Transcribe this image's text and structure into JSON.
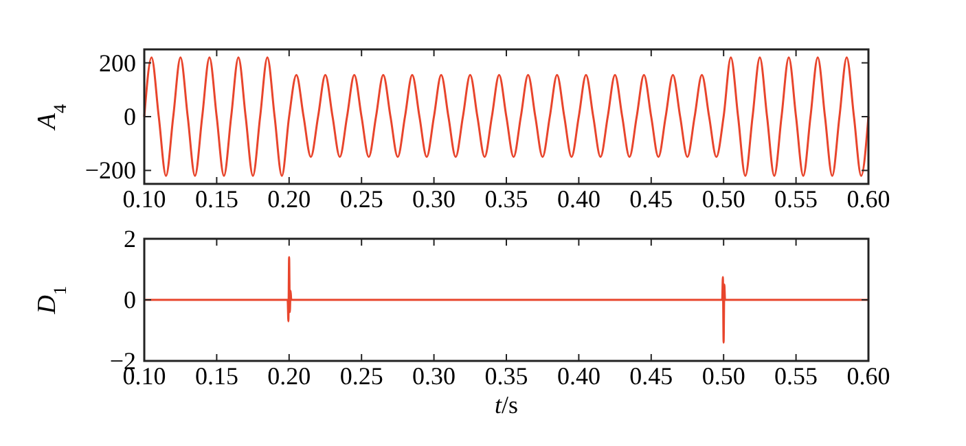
{
  "chart_data": [
    {
      "type": "line",
      "ylabel": "A$_{4}$",
      "xlim": [
        0.1,
        0.6
      ],
      "ylim": [
        -250,
        250
      ],
      "xticks": [
        {
          "value": 0.1,
          "label": "0.10"
        },
        {
          "value": 0.15,
          "label": "0.15"
        },
        {
          "value": 0.2,
          "label": "0.20"
        },
        {
          "value": 0.25,
          "label": "0.25"
        },
        {
          "value": 0.3,
          "label": "0.30"
        },
        {
          "value": 0.35,
          "label": "0.35"
        },
        {
          "value": 0.4,
          "label": "0.40"
        },
        {
          "value": 0.45,
          "label": "0.45"
        },
        {
          "value": 0.5,
          "label": "0.50"
        },
        {
          "value": 0.55,
          "label": "0.55"
        },
        {
          "value": 0.6,
          "label": "0.60"
        }
      ],
      "yticks": [
        {
          "value": -200,
          "label": "−200"
        },
        0,
        200
      ],
      "grid": false,
      "series": [
        {
          "color": "#e8452c",
          "x": [
            0.1,
            0.105,
            0.11,
            0.115,
            0.12,
            0.125,
            0.13,
            0.135,
            0.14,
            0.145,
            0.15,
            0.155,
            0.16,
            0.165,
            0.17,
            0.175,
            0.18,
            0.185,
            0.19,
            0.195,
            0.2,
            0.205,
            0.21,
            0.215,
            0.22,
            0.225,
            0.23,
            0.235,
            0.24,
            0.245,
            0.25,
            0.255,
            0.26,
            0.265,
            0.27,
            0.275,
            0.28,
            0.285,
            0.29,
            0.295,
            0.3,
            0.305,
            0.31,
            0.315,
            0.32,
            0.325,
            0.33,
            0.335,
            0.34,
            0.345,
            0.35,
            0.355,
            0.36,
            0.365,
            0.37,
            0.375,
            0.38,
            0.385,
            0.39,
            0.395,
            0.4,
            0.405,
            0.41,
            0.415,
            0.42,
            0.425,
            0.43,
            0.435,
            0.44,
            0.445,
            0.45,
            0.455,
            0.46,
            0.465,
            0.47,
            0.475,
            0.48,
            0.485,
            0.49,
            0.495,
            0.5,
            0.505,
            0.51,
            0.515,
            0.52,
            0.525,
            0.53,
            0.535,
            0.54,
            0.545,
            0.55,
            0.555,
            0.56,
            0.565,
            0.57,
            0.575,
            0.58,
            0.585,
            0.59,
            0.595,
            0.6
          ],
          "values": [
            0,
            220,
            0,
            -220,
            0,
            220,
            0,
            -220,
            0,
            220,
            0,
            -220,
            0,
            220,
            0,
            -220,
            0,
            220,
            0,
            -220,
            0,
            155,
            0,
            -150,
            0,
            155,
            0,
            -150,
            0,
            155,
            0,
            -150,
            0,
            155,
            0,
            -150,
            0,
            155,
            0,
            -150,
            0,
            155,
            0,
            -150,
            0,
            155,
            0,
            -150,
            0,
            155,
            0,
            -150,
            0,
            155,
            0,
            -150,
            0,
            155,
            0,
            -150,
            0,
            155,
            0,
            -150,
            0,
            155,
            0,
            -150,
            0,
            155,
            0,
            -150,
            0,
            155,
            0,
            -150,
            0,
            155,
            0,
            -150,
            0,
            220,
            0,
            -220,
            0,
            220,
            0,
            -220,
            0,
            220,
            0,
            -220,
            0,
            220,
            0,
            -220,
            0,
            220,
            0,
            -220,
            0
          ]
        }
      ]
    },
    {
      "type": "line",
      "ylabel": "D$_{1}$",
      "xlabel": "t/s",
      "xlim": [
        0.1,
        0.6
      ],
      "ylim": [
        -2,
        2
      ],
      "xticks": [
        {
          "value": 0.1,
          "label": "0.10"
        },
        {
          "value": 0.15,
          "label": "0.15"
        },
        {
          "value": 0.2,
          "label": "0.20"
        },
        {
          "value": 0.25,
          "label": "0.25"
        },
        {
          "value": 0.3,
          "label": "0.30"
        },
        {
          "value": 0.35,
          "label": "0.35"
        },
        {
          "value": 0.4,
          "label": "0.40"
        },
        {
          "value": 0.45,
          "label": "0.45"
        },
        {
          "value": 0.5,
          "label": "0.50"
        },
        {
          "value": 0.55,
          "label": "0.55"
        },
        {
          "value": 0.6,
          "label": "0.60"
        }
      ],
      "yticks": [
        {
          "value": -2,
          "label": "−2"
        },
        0,
        2
      ],
      "grid": false,
      "series": [
        {
          "color": "#e8452c",
          "x": [
            0.1,
            0.199,
            0.1995,
            0.2,
            0.2005,
            0.201,
            0.2015,
            0.499,
            0.4995,
            0.5,
            0.5005,
            0.501,
            0.6
          ],
          "values": [
            0,
            0,
            -0.7,
            1.4,
            -0.4,
            0.3,
            0,
            0,
            0.75,
            -1.4,
            0.5,
            0,
            0
          ]
        }
      ]
    }
  ]
}
